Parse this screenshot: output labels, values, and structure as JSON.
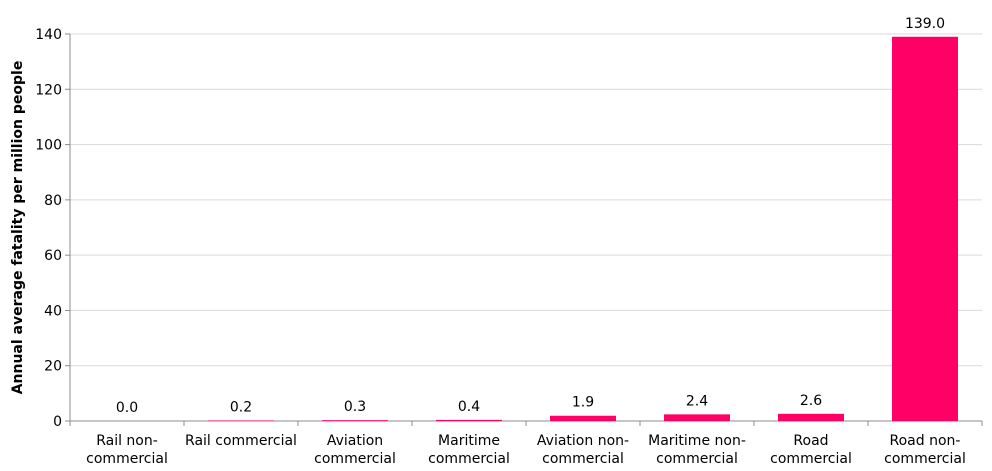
{
  "chart_data": {
    "type": "bar",
    "title": "",
    "xlabel": "",
    "ylabel": "Annual average fatality per million people",
    "ylim": [
      0,
      140
    ],
    "yticks": [
      0,
      20,
      40,
      60,
      80,
      100,
      120,
      140
    ],
    "grid": true,
    "legend": "none",
    "bar_color": "#ff0066",
    "categories": [
      [
        "Rail non-",
        "commercial"
      ],
      [
        "Rail commercial"
      ],
      [
        "Aviation",
        "commercial"
      ],
      [
        "Maritime",
        "commercial"
      ],
      [
        "Aviation non-",
        "commercial"
      ],
      [
        "Maritime non-",
        "commercial"
      ],
      [
        "Road",
        "commercial"
      ],
      [
        "Road non-",
        "commercial"
      ]
    ],
    "values": [
      0.0,
      0.2,
      0.3,
      0.4,
      1.9,
      2.4,
      2.6,
      139.0
    ],
    "value_labels": [
      "0.0",
      "0.2",
      "0.3",
      "0.4",
      "1.9",
      "2.4",
      "2.6",
      "139.0"
    ]
  }
}
